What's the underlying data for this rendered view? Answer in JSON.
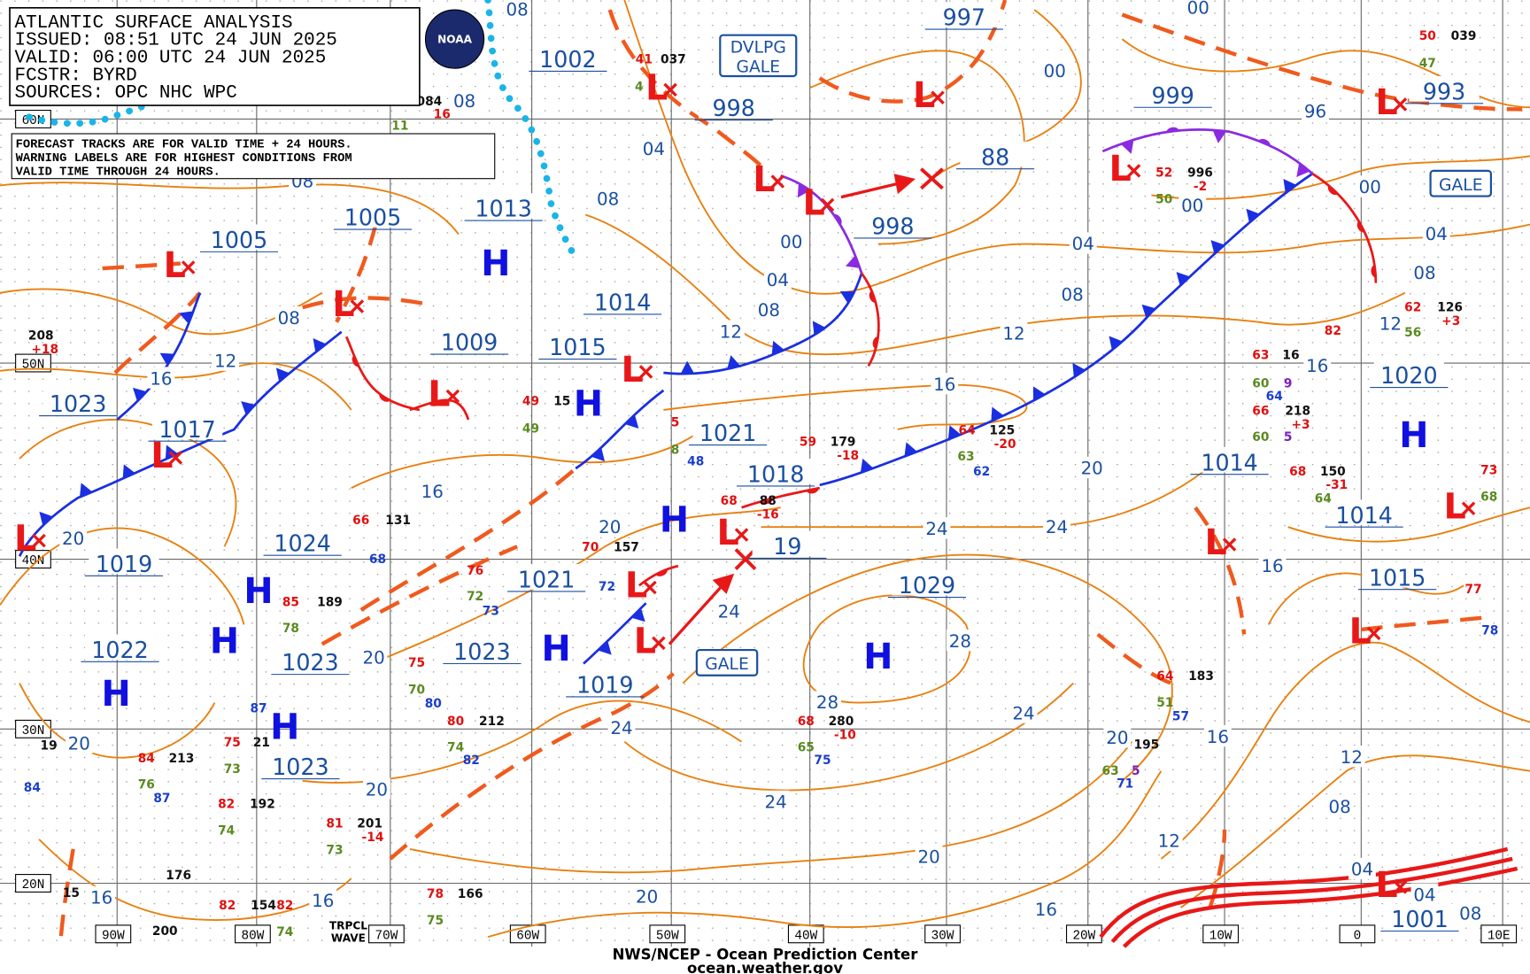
{
  "header": {
    "title": "ATLANTIC SURFACE ANALYSIS",
    "issued": "ISSUED: 08:51 UTC 24 JUN 2025",
    "valid": "VALID:  06:00 UTC 24 JUN 2025",
    "forecaster": "FCSTR:  BYRD",
    "sources": "SOURCES: OPC NHC WPC",
    "logo": "NOAA"
  },
  "note": [
    "FORECAST TRACKS ARE FOR VALID TIME + 24 HOURS.",
    "WARNING LABELS ARE FOR HIGHEST CONDITIONS FROM",
    "VALID TIME THROUGH 24 HOURS."
  ],
  "footer": {
    "agency": "NWS/NCEP - Ocean Prediction Center",
    "url": "ocean.weather.gov"
  },
  "lat_labels": [
    "60N",
    "50N",
    "40N",
    "30N",
    "20N"
  ],
  "lon_labels": [
    "90W",
    "80W",
    "70W",
    "60W",
    "50W",
    "40W",
    "30W",
    "20W",
    "10W",
    "0",
    "10E"
  ],
  "high_symbol": "H",
  "low_symbol": "L",
  "warnings": [
    "DVLPG",
    "GALE",
    "GALE",
    "GALE",
    "TRPCL",
    "WAVE"
  ],
  "pressure_labels": [
    "1002",
    "997",
    "998",
    "999",
    "993",
    "998",
    "1013",
    "1005",
    "1005",
    "1014",
    "1009",
    "1015",
    "1023",
    "1017",
    "1021",
    "1018",
    "1020",
    "1014",
    "1014",
    "1024",
    "1019",
    "1021",
    "1029",
    "1015",
    "1022",
    "1023",
    "1023",
    "1019",
    "1023",
    "1001",
    "88",
    "19"
  ],
  "isobar_labels": [
    "08",
    "08",
    "04",
    "08",
    "00",
    "00",
    "96",
    "00",
    "00",
    "04",
    "08",
    "04",
    "08",
    "12",
    "16",
    "00",
    "04",
    "08",
    "12",
    "12",
    "16",
    "08",
    "12",
    "16",
    "16",
    "20",
    "20",
    "24",
    "24",
    "16",
    "24",
    "28",
    "28",
    "20",
    "24",
    "24",
    "20",
    "16",
    "20",
    "20",
    "12",
    "08",
    "24",
    "20",
    "12",
    "20",
    "04",
    "04",
    "08",
    "16",
    "16",
    "20",
    "16",
    "08"
  ],
  "stations": [
    {
      "text": "41",
      "color": "#e01010"
    },
    {
      "text": "4",
      "color": "#5a8a20"
    },
    {
      "text": "037",
      "color": "#111111"
    },
    {
      "text": "084",
      "color": "#111111"
    },
    {
      "text": "16",
      "color": "#e01010"
    },
    {
      "text": "11",
      "color": "#5a8a20"
    },
    {
      "text": "50",
      "color": "#e01010"
    },
    {
      "text": "039",
      "color": "#111111"
    },
    {
      "text": "47",
      "color": "#5a8a20"
    },
    {
      "text": "52",
      "color": "#e01010"
    },
    {
      "text": "996",
      "color": "#111111"
    },
    {
      "text": "-2",
      "color": "#e01010"
    },
    {
      "text": "50",
      "color": "#5a8a20"
    },
    {
      "text": "208",
      "color": "#111111"
    },
    {
      "text": "+18",
      "color": "#e01010"
    },
    {
      "text": "49",
      "color": "#e01010"
    },
    {
      "text": "15",
      "color": "#111111"
    },
    {
      "text": "49",
      "color": "#5a8a20"
    },
    {
      "text": "5",
      "color": "#e01010"
    },
    {
      "text": "8",
      "color": "#5a8a20"
    },
    {
      "text": "48",
      "color": "#1a3fcc"
    },
    {
      "text": "59",
      "color": "#e01010"
    },
    {
      "text": "179",
      "color": "#111111"
    },
    {
      "text": "-18",
      "color": "#e01010"
    },
    {
      "text": "64",
      "color": "#e01010"
    },
    {
      "text": "125",
      "color": "#111111"
    },
    {
      "text": "-20",
      "color": "#e01010"
    },
    {
      "text": "63",
      "color": "#5a8a20"
    },
    {
      "text": "62",
      "color": "#1a3fcc"
    },
    {
      "text": "63",
      "color": "#e01010"
    },
    {
      "text": "16",
      "color": "#111111"
    },
    {
      "text": "60",
      "color": "#5a8a20"
    },
    {
      "text": "9",
      "color": "#7a1fbf"
    },
    {
      "text": "64",
      "color": "#1a3fcc"
    },
    {
      "text": "66",
      "color": "#e01010"
    },
    {
      "text": "218",
      "color": "#111111"
    },
    {
      "text": "+3",
      "color": "#e01010"
    },
    {
      "text": "60",
      "color": "#5a8a20"
    },
    {
      "text": "5",
      "color": "#7a1fbf"
    },
    {
      "text": "68",
      "color": "#e01010"
    },
    {
      "text": "150",
      "color": "#111111"
    },
    {
      "text": "-31",
      "color": "#e01010"
    },
    {
      "text": "64",
      "color": "#5a8a20"
    },
    {
      "text": "62",
      "color": "#e01010"
    },
    {
      "text": "126",
      "color": "#111111"
    },
    {
      "text": "+3",
      "color": "#e01010"
    },
    {
      "text": "56",
      "color": "#5a8a20"
    },
    {
      "text": "82",
      "color": "#e01010"
    },
    {
      "text": "73",
      "color": "#e01010"
    },
    {
      "text": "68",
      "color": "#5a8a20"
    },
    {
      "text": "77",
      "color": "#e01010"
    },
    {
      "text": "78",
      "color": "#1a3fcc"
    },
    {
      "text": "66",
      "color": "#e01010"
    },
    {
      "text": "131",
      "color": "#111111"
    },
    {
      "text": "68",
      "color": "#1a3fcc"
    },
    {
      "text": "70",
      "color": "#e01010"
    },
    {
      "text": "157",
      "color": "#111111"
    },
    {
      "text": "72",
      "color": "#1a3fcc"
    },
    {
      "text": "76",
      "color": "#e01010"
    },
    {
      "text": "72",
      "color": "#5a8a20"
    },
    {
      "text": "73",
      "color": "#1a3fcc"
    },
    {
      "text": "68",
      "color": "#e01010"
    },
    {
      "text": "88",
      "color": "#111111"
    },
    {
      "text": "-16",
      "color": "#e01010"
    },
    {
      "text": "85",
      "color": "#e01010"
    },
    {
      "text": "189",
      "color": "#111111"
    },
    {
      "text": "78",
      "color": "#5a8a20"
    },
    {
      "text": "75",
      "color": "#e01010"
    },
    {
      "text": "70",
      "color": "#5a8a20"
    },
    {
      "text": "80",
      "color": "#1a3fcc"
    },
    {
      "text": "80",
      "color": "#e01010"
    },
    {
      "text": "212",
      "color": "#111111"
    },
    {
      "text": "74",
      "color": "#5a8a20"
    },
    {
      "text": "82",
      "color": "#1a3fcc"
    },
    {
      "text": "68",
      "color": "#e01010"
    },
    {
      "text": "280",
      "color": "#111111"
    },
    {
      "text": "-10",
      "color": "#e01010"
    },
    {
      "text": "65",
      "color": "#5a8a20"
    },
    {
      "text": "75",
      "color": "#1a3fcc"
    },
    {
      "text": "64",
      "color": "#e01010"
    },
    {
      "text": "183",
      "color": "#111111"
    },
    {
      "text": "51",
      "color": "#5a8a20"
    },
    {
      "text": "57",
      "color": "#1a3fcc"
    },
    {
      "text": "195",
      "color": "#111111"
    },
    {
      "text": "63",
      "color": "#5a8a20"
    },
    {
      "text": "5",
      "color": "#7a1fbf"
    },
    {
      "text": "71",
      "color": "#1a3fcc"
    },
    {
      "text": "84",
      "color": "#e01010"
    },
    {
      "text": "213",
      "color": "#111111"
    },
    {
      "text": "76",
      "color": "#5a8a20"
    },
    {
      "text": "87",
      "color": "#1a3fcc"
    },
    {
      "text": "75",
      "color": "#e01010"
    },
    {
      "text": "73",
      "color": "#5a8a20"
    },
    {
      "text": "82",
      "color": "#e01010"
    },
    {
      "text": "192",
      "color": "#111111"
    },
    {
      "text": "74",
      "color": "#5a8a20"
    },
    {
      "text": "81",
      "color": "#e01010"
    },
    {
      "text": "201",
      "color": "#111111"
    },
    {
      "text": "-14",
      "color": "#e01010"
    },
    {
      "text": "73",
      "color": "#5a8a20"
    },
    {
      "text": "176",
      "color": "#111111"
    },
    {
      "text": "78",
      "color": "#e01010"
    },
    {
      "text": "166",
      "color": "#111111"
    },
    {
      "text": "75",
      "color": "#5a8a20"
    },
    {
      "text": "82",
      "color": "#e01010"
    },
    {
      "text": "154",
      "color": "#111111"
    },
    {
      "text": "82",
      "color": "#e01010"
    },
    {
      "text": "74",
      "color": "#5a8a20"
    },
    {
      "text": "15",
      "color": "#111111"
    },
    {
      "text": "200",
      "color": "#111111"
    },
    {
      "text": "84",
      "color": "#1a3fcc"
    },
    {
      "text": "19",
      "color": "#111111"
    },
    {
      "text": "21",
      "color": "#111111"
    },
    {
      "text": "87",
      "color": "#1a3fcc"
    }
  ]
}
